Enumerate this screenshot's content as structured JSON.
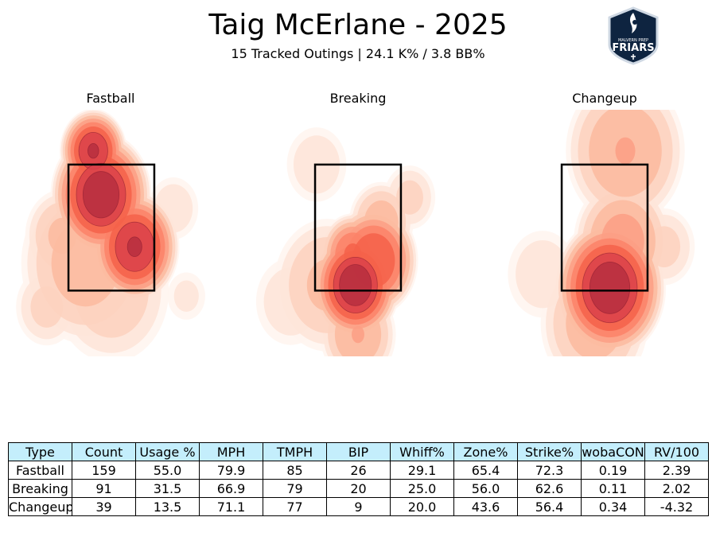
{
  "header": {
    "title": "Taig McErlane - 2025",
    "subtitle": "15 Tracked Outings | 24.1 K% / 3.8 BB%"
  },
  "logo": {
    "icon": "friars-shield-logo",
    "text_top": "MALVERN PREP",
    "text_main": "FRIARS"
  },
  "colors": {
    "table_header_bg": "#c4eefc",
    "density_low": "#fee5d9",
    "density_mid": "#fb6a4a",
    "density_high": "#a50f15",
    "zone_border": "#000000"
  },
  "chart_data": [
    {
      "type": "heatmap",
      "title": "Fastball",
      "description_kind": "pitch location density",
      "hotspots": [
        {
          "x": -0.35,
          "y": 3.75,
          "w": 0.3,
          "intensity": 0.95
        },
        {
          "x": -0.2,
          "y": 2.95,
          "w": 0.45,
          "intensity": 1.0
        },
        {
          "x": 0.45,
          "y": 2.0,
          "w": 0.4,
          "intensity": 0.95
        },
        {
          "x": 0.2,
          "y": 2.3,
          "w": 0.3,
          "intensity": 0.7
        },
        {
          "x": -0.5,
          "y": 1.7,
          "w": 0.6,
          "intensity": 0.45
        },
        {
          "x": -0.95,
          "y": 2.2,
          "w": 0.35,
          "intensity": 0.4
        },
        {
          "x": 0.0,
          "y": 1.2,
          "w": 0.55,
          "intensity": 0.35
        },
        {
          "x": -1.25,
          "y": 0.9,
          "w": 0.3,
          "intensity": 0.3
        },
        {
          "x": 1.2,
          "y": 2.7,
          "w": 0.25,
          "intensity": 0.25
        },
        {
          "x": 1.45,
          "y": 1.1,
          "w": 0.2,
          "intensity": 0.2
        }
      ],
      "strike_zone": {
        "x_range": [
          -0.83,
          0.83
        ],
        "y_range": [
          1.2,
          3.5
        ]
      }
    },
    {
      "type": "heatmap",
      "title": "Breaking",
      "description_kind": "pitch location density",
      "hotspots": [
        {
          "x": -0.05,
          "y": 1.3,
          "w": 0.4,
          "intensity": 1.0
        },
        {
          "x": 0.3,
          "y": 1.75,
          "w": 0.4,
          "intensity": 0.85
        },
        {
          "x": -0.1,
          "y": 1.85,
          "w": 0.3,
          "intensity": 0.75
        },
        {
          "x": 0.45,
          "y": 2.45,
          "w": 0.3,
          "intensity": 0.45
        },
        {
          "x": -0.6,
          "y": 1.3,
          "w": 0.5,
          "intensity": 0.4
        },
        {
          "x": 0.0,
          "y": 0.4,
          "w": 0.35,
          "intensity": 0.5
        },
        {
          "x": -0.8,
          "y": 3.5,
          "w": 0.3,
          "intensity": 0.25
        },
        {
          "x": 1.0,
          "y": 2.9,
          "w": 0.25,
          "intensity": 0.3
        },
        {
          "x": -1.3,
          "y": 1.0,
          "w": 0.35,
          "intensity": 0.25
        }
      ],
      "strike_zone": {
        "x_range": [
          -0.83,
          0.83
        ],
        "y_range": [
          1.2,
          3.5
        ]
      }
    },
    {
      "type": "heatmap",
      "title": "Changeup",
      "description_kind": "pitch location density",
      "hotspots": [
        {
          "x": 0.1,
          "y": 1.25,
          "w": 0.5,
          "intensity": 1.0
        },
        {
          "x": 0.35,
          "y": 2.1,
          "w": 0.45,
          "intensity": 0.55
        },
        {
          "x": 0.4,
          "y": 3.75,
          "w": 0.55,
          "intensity": 0.5
        },
        {
          "x": 1.15,
          "y": 2.0,
          "w": 0.3,
          "intensity": 0.3
        },
        {
          "x": -1.2,
          "y": 1.5,
          "w": 0.35,
          "intensity": 0.25
        },
        {
          "x": -0.2,
          "y": 0.6,
          "w": 0.5,
          "intensity": 0.45
        }
      ],
      "strike_zone": {
        "x_range": [
          -0.83,
          0.83
        ],
        "y_range": [
          1.2,
          3.5
        ]
      }
    },
    {
      "type": "table",
      "columns": [
        "Type",
        "Count",
        "Usage %",
        "MPH",
        "TMPH",
        "BIP",
        "Whiff%",
        "Zone%",
        "Strike%",
        "wobaCON",
        "RV/100"
      ],
      "rows": [
        [
          "Fastball",
          "159",
          "55.0",
          "79.9",
          "85",
          "26",
          "29.1",
          "65.4",
          "72.3",
          "0.19",
          "2.39"
        ],
        [
          "Breaking",
          "91",
          "31.5",
          "66.9",
          "79",
          "20",
          "25.0",
          "56.0",
          "62.6",
          "0.11",
          "2.02"
        ],
        [
          "Changeup",
          "39",
          "13.5",
          "71.1",
          "77",
          "9",
          "20.0",
          "43.6",
          "56.4",
          "0.34",
          "-4.32"
        ]
      ]
    }
  ]
}
